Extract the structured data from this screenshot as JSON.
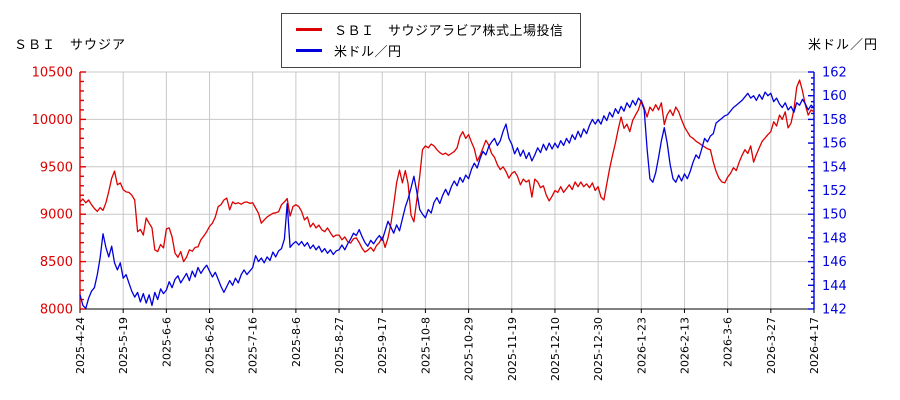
{
  "header": {
    "left_title": "ＳＢＩ　サウジア",
    "right_title": "米ドル／円"
  },
  "legend": {
    "border_color": "#444444",
    "items": [
      {
        "label": "ＳＢＩ　サウジアラビア株式上場投信",
        "color": "#dd0000"
      },
      {
        "label": "米ドル／円",
        "color": "#0000dd"
      }
    ]
  },
  "chart_data": {
    "type": "line",
    "title": "ＳＢＩ　サウジアラビア株式上場投信 vs 米ドル／円",
    "grid": true,
    "grid_color": "#c8c8c8",
    "background": "#ffffff",
    "x_tick_labels": [
      "2025-4-24",
      "2025-5-19",
      "2025-6-6",
      "2025-6-26",
      "2025-7-16",
      "2025-8-6",
      "2025-8-27",
      "2025-9-17",
      "2025-10-8",
      "2025-10-29",
      "2025-11-19",
      "2025-12-10",
      "2025-12-30",
      "2026-1-23",
      "2026-2-13",
      "2026-3-6",
      "2026-3-27",
      "2026-4-17"
    ],
    "left_axis": {
      "label": "ＳＢＩ　サウジア",
      "color": "#dd0000",
      "range": [
        8000,
        10500
      ],
      "major_step": 500,
      "minor_step": 100,
      "tick_labels": [
        "8000",
        "8500",
        "9000",
        "9500",
        "10000",
        "10500"
      ]
    },
    "right_axis": {
      "label": "米ドル／円",
      "color": "#0000dd",
      "range": [
        142,
        162
      ],
      "major_step": 2,
      "minor_step": 0.5,
      "tick_labels": [
        "142",
        "144",
        "146",
        "148",
        "150",
        "152",
        "154",
        "156",
        "158",
        "160",
        "162"
      ]
    },
    "bottom_axis_color": "#000000",
    "series": [
      {
        "name": "ＳＢＩ　サウジアラビア株式上場投信",
        "axis": "left",
        "color": "#dd0000",
        "values": [
          9130,
          9160,
          9120,
          9150,
          9100,
          9060,
          9030,
          9070,
          9040,
          9120,
          9240,
          9380,
          9455,
          9310,
          9330,
          9260,
          9235,
          9230,
          9200,
          9150,
          8815,
          8840,
          8780,
          8960,
          8905,
          8855,
          8625,
          8605,
          8680,
          8645,
          8845,
          8855,
          8760,
          8590,
          8545,
          8605,
          8500,
          8545,
          8625,
          8610,
          8650,
          8655,
          8730,
          8770,
          8815,
          8870,
          8905,
          8970,
          9080,
          9100,
          9150,
          9170,
          9045,
          9130,
          9110,
          9120,
          9105,
          9125,
          9130,
          9115,
          9120,
          9065,
          9010,
          8905,
          8940,
          8970,
          8990,
          9010,
          9015,
          9025,
          9100,
          9130,
          9165,
          8980,
          9080,
          9100,
          9080,
          9030,
          8940,
          8970,
          8865,
          8905,
          8855,
          8885,
          8835,
          8815,
          8855,
          8805,
          8760,
          8780,
          8780,
          8730,
          8760,
          8710,
          8695,
          8740,
          8750,
          8700,
          8640,
          8600,
          8620,
          8650,
          8610,
          8670,
          8700,
          8760,
          8650,
          8750,
          8900,
          9100,
          9330,
          9465,
          9330,
          9460,
          9320,
          8990,
          8920,
          9150,
          9400,
          9680,
          9720,
          9700,
          9740,
          9720,
          9680,
          9650,
          9630,
          9645,
          9620,
          9640,
          9660,
          9700,
          9820,
          9870,
          9800,
          9840,
          9760,
          9690,
          9560,
          9620,
          9700,
          9780,
          9730,
          9640,
          9600,
          9520,
          9470,
          9500,
          9450,
          9380,
          9430,
          9450,
          9400,
          9310,
          9370,
          9340,
          9360,
          9180,
          9370,
          9340,
          9280,
          9300,
          9200,
          9140,
          9190,
          9250,
          9230,
          9290,
          9230,
          9270,
          9310,
          9260,
          9340,
          9290,
          9340,
          9290,
          9320,
          9280,
          9330,
          9250,
          9290,
          9180,
          9150,
          9320,
          9480,
          9620,
          9750,
          9900,
          10025,
          9905,
          9950,
          9870,
          9990,
          10045,
          10100,
          10200,
          10120,
          10025,
          10130,
          10090,
          10155,
          10100,
          10175,
          9945,
          10050,
          10100,
          10040,
          10130,
          10080,
          9995,
          9920,
          9870,
          9820,
          9800,
          9770,
          9750,
          9730,
          9710,
          9690,
          9680,
          9550,
          9450,
          9380,
          9340,
          9330,
          9390,
          9430,
          9490,
          9460,
          9550,
          9620,
          9680,
          9640,
          9720,
          9550,
          9630,
          9700,
          9770,
          9805,
          9840,
          9870,
          9975,
          9930,
          10045,
          10000,
          10080,
          9910,
          9960,
          10100,
          10340,
          10415,
          10300,
          10150,
          10045,
          10100,
          10080
        ]
      },
      {
        "name": "米ドル／円",
        "axis": "right",
        "color": "#0000dd",
        "values": [
          143.2,
          142.3,
          142.05,
          142.9,
          143.5,
          143.8,
          144.9,
          146.3,
          148.35,
          147.2,
          146.4,
          147.3,
          145.9,
          145.3,
          145.9,
          144.6,
          144.9,
          144.2,
          143.5,
          143.0,
          143.4,
          142.6,
          143.3,
          142.5,
          143.2,
          142.3,
          143.4,
          142.8,
          143.7,
          143.3,
          143.6,
          144.3,
          143.8,
          144.5,
          144.8,
          144.2,
          144.6,
          145.0,
          144.4,
          145.2,
          144.7,
          145.5,
          145.0,
          145.4,
          145.7,
          145.2,
          144.7,
          145.1,
          144.5,
          143.9,
          143.4,
          143.9,
          144.4,
          144.0,
          144.6,
          144.2,
          144.9,
          145.3,
          144.9,
          145.2,
          145.5,
          146.5,
          146.0,
          146.3,
          145.9,
          146.4,
          146.1,
          146.8,
          146.4,
          146.9,
          147.1,
          147.9,
          150.9,
          147.2,
          147.5,
          147.7,
          147.4,
          147.7,
          147.3,
          147.6,
          147.1,
          147.4,
          147.0,
          147.3,
          146.8,
          147.1,
          146.7,
          147.0,
          146.6,
          146.9,
          147.0,
          147.4,
          147.0,
          147.5,
          147.9,
          148.4,
          148.2,
          148.7,
          148.1,
          147.6,
          147.3,
          147.8,
          147.5,
          147.9,
          148.2,
          147.8,
          148.6,
          149.4,
          148.9,
          148.4,
          149.1,
          148.6,
          149.6,
          150.6,
          151.3,
          152.2,
          153.2,
          151.9,
          150.4,
          150.0,
          149.7,
          150.4,
          150.1,
          151.0,
          151.4,
          150.9,
          151.6,
          152.1,
          151.6,
          152.3,
          152.8,
          152.4,
          153.1,
          152.7,
          153.3,
          153.0,
          153.8,
          154.3,
          153.9,
          154.7,
          155.3,
          155.0,
          155.7,
          156.1,
          156.4,
          155.8,
          156.2,
          157.0,
          157.6,
          156.4,
          155.9,
          155.1,
          155.6,
          154.9,
          155.4,
          154.7,
          155.2,
          154.5,
          155.0,
          155.6,
          155.2,
          155.9,
          155.4,
          156.0,
          155.5,
          156.0,
          155.6,
          156.2,
          155.8,
          156.4,
          156.0,
          156.7,
          156.3,
          157.0,
          156.5,
          157.2,
          156.8,
          157.5,
          158.0,
          157.6,
          158.0,
          157.6,
          158.3,
          157.9,
          158.6,
          158.2,
          158.9,
          158.5,
          159.1,
          158.7,
          159.4,
          159.0,
          159.6,
          159.2,
          159.8,
          159.5,
          158.8,
          155.5,
          153.0,
          152.7,
          153.5,
          154.8,
          156.2,
          157.3,
          156.0,
          154.2,
          153.0,
          152.7,
          153.3,
          152.8,
          153.4,
          153.0,
          153.6,
          154.4,
          155.0,
          154.7,
          155.5,
          156.4,
          156.1,
          156.6,
          156.8,
          157.7,
          157.9,
          158.1,
          158.3,
          158.4,
          158.7,
          159.0,
          159.2,
          159.4,
          159.6,
          159.9,
          160.2,
          159.8,
          160.0,
          159.6,
          160.1,
          159.7,
          160.3,
          160.0,
          160.2,
          159.5,
          159.8,
          159.3,
          159.0,
          159.4,
          158.8,
          159.1,
          158.6,
          159.4,
          159.2,
          159.7,
          159.3,
          158.8,
          159.2,
          159.0
        ]
      }
    ]
  }
}
